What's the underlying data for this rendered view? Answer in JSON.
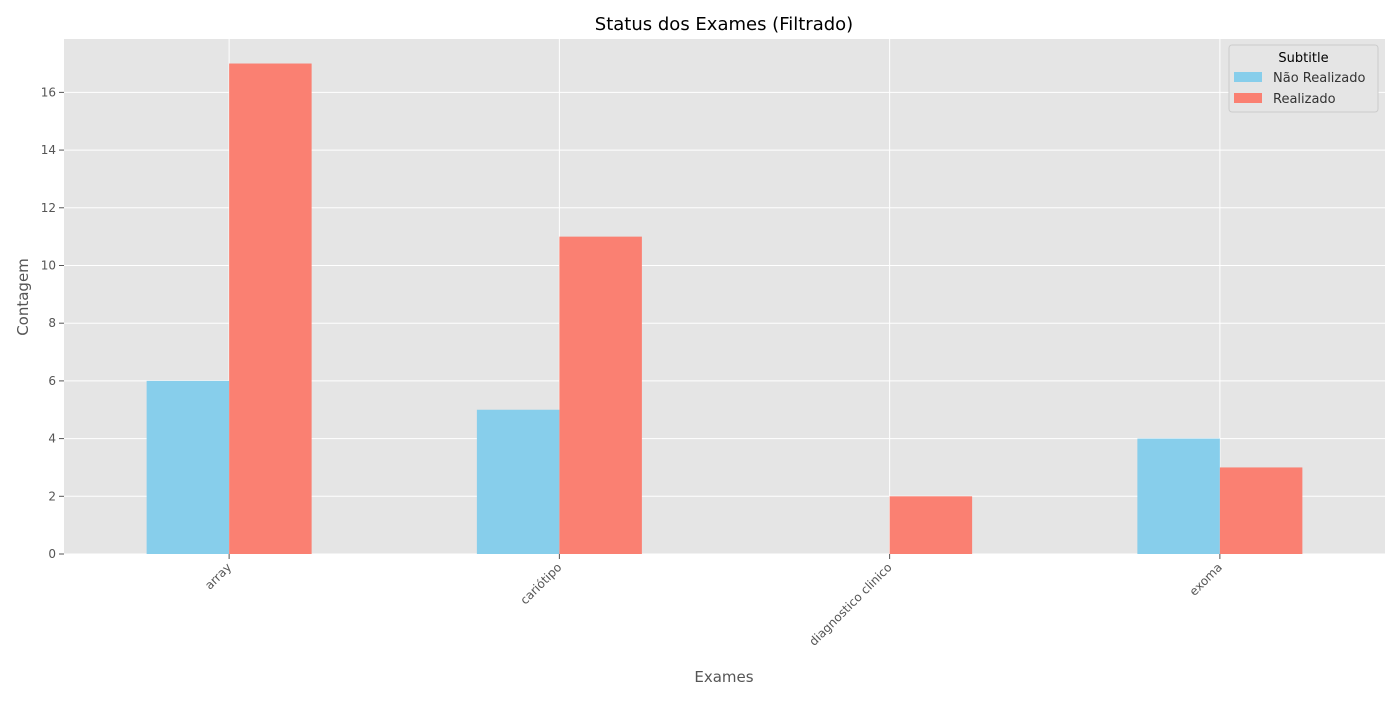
{
  "chart_data": {
    "type": "bar",
    "title": "Status dos Exames (Filtrado)",
    "xlabel": "Exames",
    "ylabel": "Contagem",
    "categories": [
      "array",
      "cariótipo",
      "diagnostico clinico",
      "exoma"
    ],
    "series": [
      {
        "name": "Não Realizado",
        "values": [
          6,
          5,
          0,
          4
        ],
        "color": "#87CEEB"
      },
      {
        "name": "Realizado",
        "values": [
          17,
          11,
          2,
          3
        ],
        "color": "#FA8072"
      }
    ],
    "ylim": [
      0,
      17.85
    ],
    "yticks": [
      0,
      2,
      4,
      6,
      8,
      10,
      12,
      14,
      16
    ],
    "grid": true,
    "legend": {
      "title": "Subtitle",
      "placement": "top-right"
    },
    "background_color": "#E5E5E5",
    "grid_color": "#FFFFFF",
    "text_color": "#555555",
    "title_color": "#000000"
  }
}
